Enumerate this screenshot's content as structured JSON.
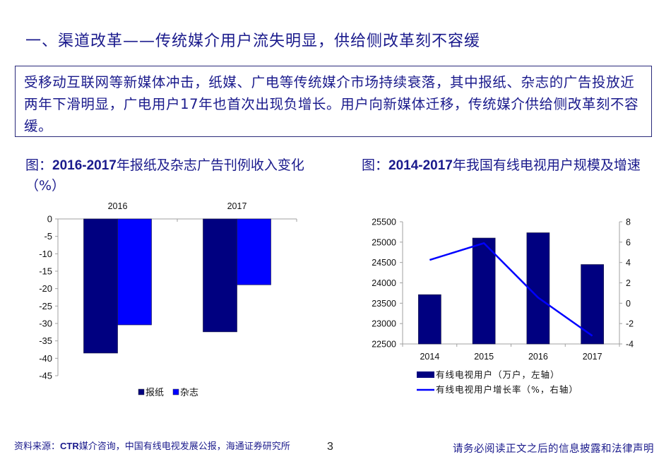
{
  "slide": {
    "title": "一、渠道改革——传统媒介用户流失明显，供给侧改革刻不容缓",
    "summary": "受移动互联网等新媒体冲击，纸媒、广电等传统媒介市场持续衰落，其中报纸、杂志的广告投放近两年下滑明显，广电用户17年也首次出现负增长。用户向新媒体迁移，传统媒介供给侧改革刻不容缓。",
    "page_number": "3"
  },
  "left_chart": {
    "caption_prefix": "图：",
    "caption_bold": "2016-2017",
    "caption_rest": "年报纸及杂志广告刊例收入变化（%）"
  },
  "right_chart": {
    "caption_prefix": "图：",
    "caption_bold": "2014-2017",
    "caption_rest": "年我国有线电视用户规模及增速"
  },
  "footer": {
    "source_prefix": "资料来源：",
    "source_bold": "CTR",
    "source_rest": "媒介咨询，中国有线电视发展公报，海通证券研究所",
    "disclaimer": "请务必阅读正文之后的信息披露和法律声明"
  },
  "colors": {
    "title_text": "#1a1a8c",
    "dark_navy": "#000080",
    "bright_blue": "#0000ff",
    "axis": "#a0a0a0"
  },
  "chart_data": [
    {
      "type": "bar",
      "title": "2016-2017年报纸及杂志广告刊例收入变化（%）",
      "categories": [
        "2016",
        "2017"
      ],
      "series": [
        {
          "name": "报纸",
          "values": [
            -38.5,
            -32.4
          ],
          "color": "#000080"
        },
        {
          "name": "杂志",
          "values": [
            -30.4,
            -18.9
          ],
          "color": "#0000ff"
        }
      ],
      "xlabel": "",
      "ylabel": "",
      "ylim": [
        -45,
        0
      ],
      "yticks": [
        0,
        -5,
        -10,
        -15,
        -20,
        -25,
        -30,
        -35,
        -40,
        -45
      ],
      "category_axis_position": "top",
      "legend_position": "bottom",
      "grid": false
    },
    {
      "type": "bar+line",
      "title": "2014-2017年我国有线电视用户规模及增速",
      "categories": [
        "2014",
        "2015",
        "2016",
        "2017"
      ],
      "series": [
        {
          "name": "有线电视用户（万户，左轴）",
          "type": "bar",
          "axis": "left",
          "values": [
            23710,
            25100,
            25230,
            24450
          ],
          "color": "#000080"
        },
        {
          "name": "有线电视用户增长率（%，右轴）",
          "type": "line",
          "axis": "right",
          "values": [
            4.25,
            5.9,
            0.55,
            -3.2
          ],
          "color": "#0000ff"
        }
      ],
      "ylim_left": [
        22500,
        25500
      ],
      "yticks_left": [
        22500,
        23000,
        23500,
        24000,
        24500,
        25000,
        25500
      ],
      "ylim_right": [
        -4,
        8
      ],
      "yticks_right": [
        -4,
        -2,
        0,
        2,
        4,
        6,
        8
      ],
      "legend_position": "bottom",
      "grid": false
    }
  ]
}
